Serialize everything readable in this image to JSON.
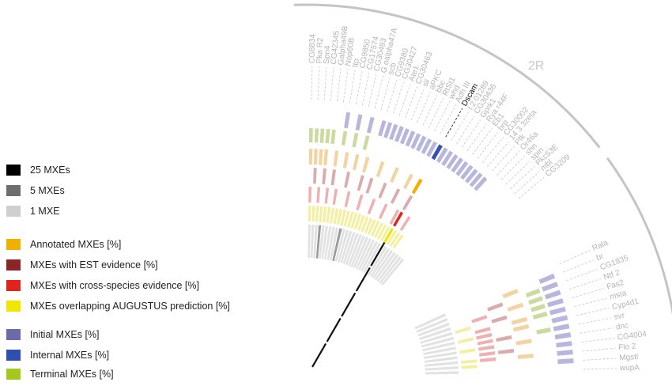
{
  "legend": {
    "count_items": [
      {
        "label": "25 MXEs",
        "color": "#000000"
      },
      {
        "label": "5 MXEs",
        "color": "#6e6e6e"
      },
      {
        "label": "1 MXE",
        "color": "#cfcfcf"
      }
    ],
    "evidence_items": [
      {
        "label": "Annotated MXEs [%]",
        "color": "#f0b000"
      },
      {
        "label": "MXEs with EST evidence [%]",
        "color": "#8a2626"
      },
      {
        "label": "MXEs with cross-species evidence [%]",
        "color": "#e0231c"
      },
      {
        "label": "MXEs overlapping AUGUSTUS prediction [%]",
        "color": "#f2e600"
      }
    ],
    "position_items": [
      {
        "label": "Initial MXEs [%]",
        "color": "#6e6aa8"
      },
      {
        "label": "Internal MXEs [%]",
        "color": "#2f4fb0"
      },
      {
        "label": "Terminal MXEs [%]",
        "color": "#a6c81e"
      }
    ]
  },
  "chromosome": {
    "label": "2R"
  },
  "genes_upper": [
    "CG8834",
    "Pka R2",
    "Spn4",
    "CG42345",
    "Galpha49B",
    "Nop60B",
    "ltp",
    "CG9850",
    "CG17574",
    "CG30493",
    "G oalpha47A",
    "scb",
    "CG9380",
    "CG30427",
    "Ate1",
    "CG30463",
    "sli",
    "aPKC",
    "bbc",
    "RtSt1",
    "whd",
    "Adh III",
    "Dscam",
    "l 2 01289",
    "CG30436",
    "Gprk1",
    "Rya r44F",
    "Eb1",
    "brp",
    "CG30002",
    "14 3 3zeta",
    "Pfk",
    "Or46a",
    "shn",
    "spin",
    "Pkc53E",
    "mbl",
    "CG3209"
  ],
  "highlight_gene": "Dscam",
  "genes_lower": [
    "Rala",
    "br",
    "CG1835",
    "Ntf 2",
    "Fas2",
    "msta",
    "Cyp4d1",
    "svr",
    "dnc",
    "CG4004",
    "Flo 2",
    "Mgstl",
    "wupA"
  ]
}
